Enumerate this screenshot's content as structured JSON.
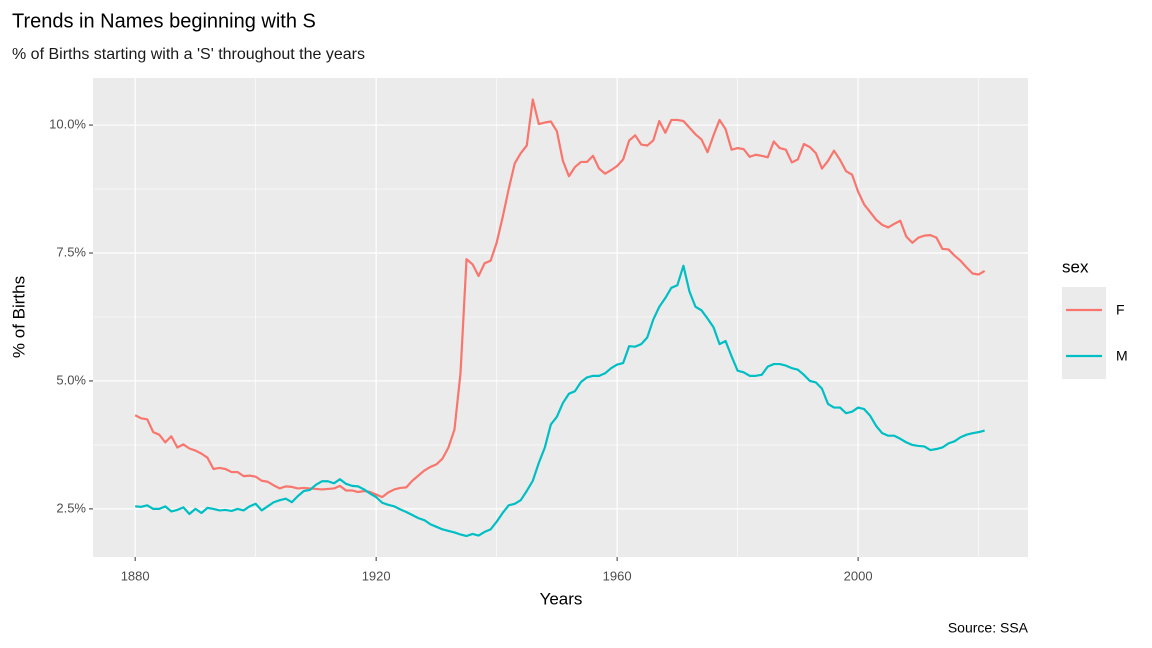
{
  "chart_data": {
    "type": "line",
    "title": "Trends in Names beginning with S",
    "subtitle": "% of Births starting with a 'S' throughout the years",
    "x_label": "Years",
    "y_label": "% of Births",
    "caption": "Source: SSA",
    "legend_title": "sex",
    "legend_position": "right",
    "grid": true,
    "x": [
      1880,
      1881,
      1882,
      1883,
      1884,
      1885,
      1886,
      1887,
      1888,
      1889,
      1890,
      1891,
      1892,
      1893,
      1894,
      1895,
      1896,
      1897,
      1898,
      1899,
      1900,
      1901,
      1902,
      1903,
      1904,
      1905,
      1906,
      1907,
      1908,
      1909,
      1910,
      1911,
      1912,
      1913,
      1914,
      1915,
      1916,
      1917,
      1918,
      1919,
      1920,
      1921,
      1922,
      1923,
      1924,
      1925,
      1926,
      1927,
      1928,
      1929,
      1930,
      1931,
      1932,
      1933,
      1934,
      1935,
      1936,
      1937,
      1938,
      1939,
      1940,
      1941,
      1942,
      1943,
      1944,
      1945,
      1946,
      1947,
      1948,
      1949,
      1950,
      1951,
      1952,
      1953,
      1954,
      1955,
      1956,
      1957,
      1958,
      1959,
      1960,
      1961,
      1962,
      1963,
      1964,
      1965,
      1966,
      1967,
      1968,
      1969,
      1970,
      1971,
      1972,
      1973,
      1974,
      1975,
      1976,
      1977,
      1978,
      1979,
      1980,
      1981,
      1982,
      1983,
      1984,
      1985,
      1986,
      1987,
      1988,
      1989,
      1990,
      1991,
      1992,
      1993,
      1994,
      1995,
      1996,
      1997,
      1998,
      1999,
      2000,
      2001,
      2002,
      2003,
      2004,
      2005,
      2006,
      2007,
      2008,
      2009,
      2010,
      2011,
      2012,
      2013,
      2014,
      2015,
      2016,
      2017,
      2018,
      2019,
      2020,
      2021
    ],
    "series": [
      {
        "name": "F",
        "color": "#F8766D",
        "values": [
          4.33,
          4.27,
          4.25,
          4.0,
          3.95,
          3.8,
          3.92,
          3.7,
          3.76,
          3.68,
          3.64,
          3.58,
          3.5,
          3.28,
          3.3,
          3.28,
          3.22,
          3.22,
          3.14,
          3.15,
          3.13,
          3.05,
          3.03,
          2.96,
          2.9,
          2.94,
          2.93,
          2.9,
          2.91,
          2.9,
          2.89,
          2.88,
          2.89,
          2.9,
          2.95,
          2.86,
          2.86,
          2.83,
          2.85,
          2.83,
          2.78,
          2.73,
          2.82,
          2.88,
          2.91,
          2.92,
          3.05,
          3.15,
          3.25,
          3.32,
          3.37,
          3.48,
          3.7,
          4.05,
          5.15,
          7.38,
          7.28,
          7.05,
          7.3,
          7.35,
          7.7,
          8.2,
          8.75,
          9.25,
          9.45,
          9.6,
          10.5,
          10.02,
          10.05,
          10.07,
          9.88,
          9.3,
          9.0,
          9.18,
          9.28,
          9.28,
          9.4,
          9.15,
          9.05,
          9.12,
          9.2,
          9.33,
          9.7,
          9.8,
          9.62,
          9.6,
          9.7,
          10.08,
          9.85,
          10.1,
          10.1,
          10.08,
          9.95,
          9.82,
          9.72,
          9.47,
          9.8,
          10.1,
          9.92,
          9.52,
          9.55,
          9.53,
          9.38,
          9.42,
          9.4,
          9.37,
          9.68,
          9.55,
          9.52,
          9.27,
          9.33,
          9.63,
          9.57,
          9.45,
          9.15,
          9.3,
          9.5,
          9.32,
          9.1,
          9.03,
          8.7,
          8.45,
          8.3,
          8.15,
          8.05,
          8.0,
          8.07,
          8.13,
          7.82,
          7.7,
          7.8,
          7.84,
          7.85,
          7.8,
          7.58,
          7.57,
          7.45,
          7.35,
          7.22,
          7.1,
          7.08,
          7.15
        ]
      },
      {
        "name": "M",
        "color": "#00BFC4",
        "values": [
          2.55,
          2.54,
          2.57,
          2.5,
          2.5,
          2.55,
          2.45,
          2.48,
          2.53,
          2.4,
          2.5,
          2.42,
          2.52,
          2.5,
          2.47,
          2.48,
          2.46,
          2.5,
          2.47,
          2.55,
          2.6,
          2.47,
          2.55,
          2.63,
          2.67,
          2.7,
          2.63,
          2.75,
          2.85,
          2.87,
          2.97,
          3.04,
          3.04,
          3.0,
          3.08,
          2.99,
          2.95,
          2.94,
          2.88,
          2.8,
          2.73,
          2.62,
          2.58,
          2.55,
          2.49,
          2.44,
          2.38,
          2.32,
          2.28,
          2.2,
          2.15,
          2.1,
          2.07,
          2.04,
          2.0,
          1.97,
          2.01,
          1.98,
          2.05,
          2.1,
          2.25,
          2.42,
          2.57,
          2.6,
          2.67,
          2.85,
          3.05,
          3.4,
          3.7,
          4.15,
          4.3,
          4.57,
          4.75,
          4.8,
          4.98,
          5.07,
          5.1,
          5.1,
          5.15,
          5.25,
          5.32,
          5.35,
          5.68,
          5.67,
          5.72,
          5.85,
          6.2,
          6.45,
          6.62,
          6.82,
          6.87,
          7.25,
          6.75,
          6.45,
          6.38,
          6.22,
          6.05,
          5.72,
          5.78,
          5.48,
          5.2,
          5.17,
          5.1,
          5.1,
          5.12,
          5.28,
          5.33,
          5.33,
          5.3,
          5.25,
          5.22,
          5.12,
          5.0,
          4.97,
          4.85,
          4.55,
          4.48,
          4.48,
          4.37,
          4.4,
          4.48,
          4.45,
          4.32,
          4.12,
          3.98,
          3.93,
          3.93,
          3.87,
          3.8,
          3.75,
          3.73,
          3.72,
          3.65,
          3.67,
          3.7,
          3.78,
          3.82,
          3.9,
          3.95,
          3.98,
          4.0,
          4.03
        ]
      }
    ],
    "xlim": [
      1873.0,
      2028.2
    ],
    "ylim": [
      1.56,
      10.92
    ],
    "xticks": [
      1880,
      1920,
      1960,
      2000
    ],
    "minor_xticks": [
      1900,
      1940,
      1980,
      2020
    ],
    "yticks": [
      {
        "value": 2.5,
        "label": "2.5%"
      },
      {
        "value": 5,
        "label": "5.0%"
      },
      {
        "value": 7.5,
        "label": "7.5%"
      },
      {
        "value": 10,
        "label": "10.0%"
      }
    ],
    "minor_yticks": [
      3.75,
      6.25,
      8.75
    ]
  }
}
